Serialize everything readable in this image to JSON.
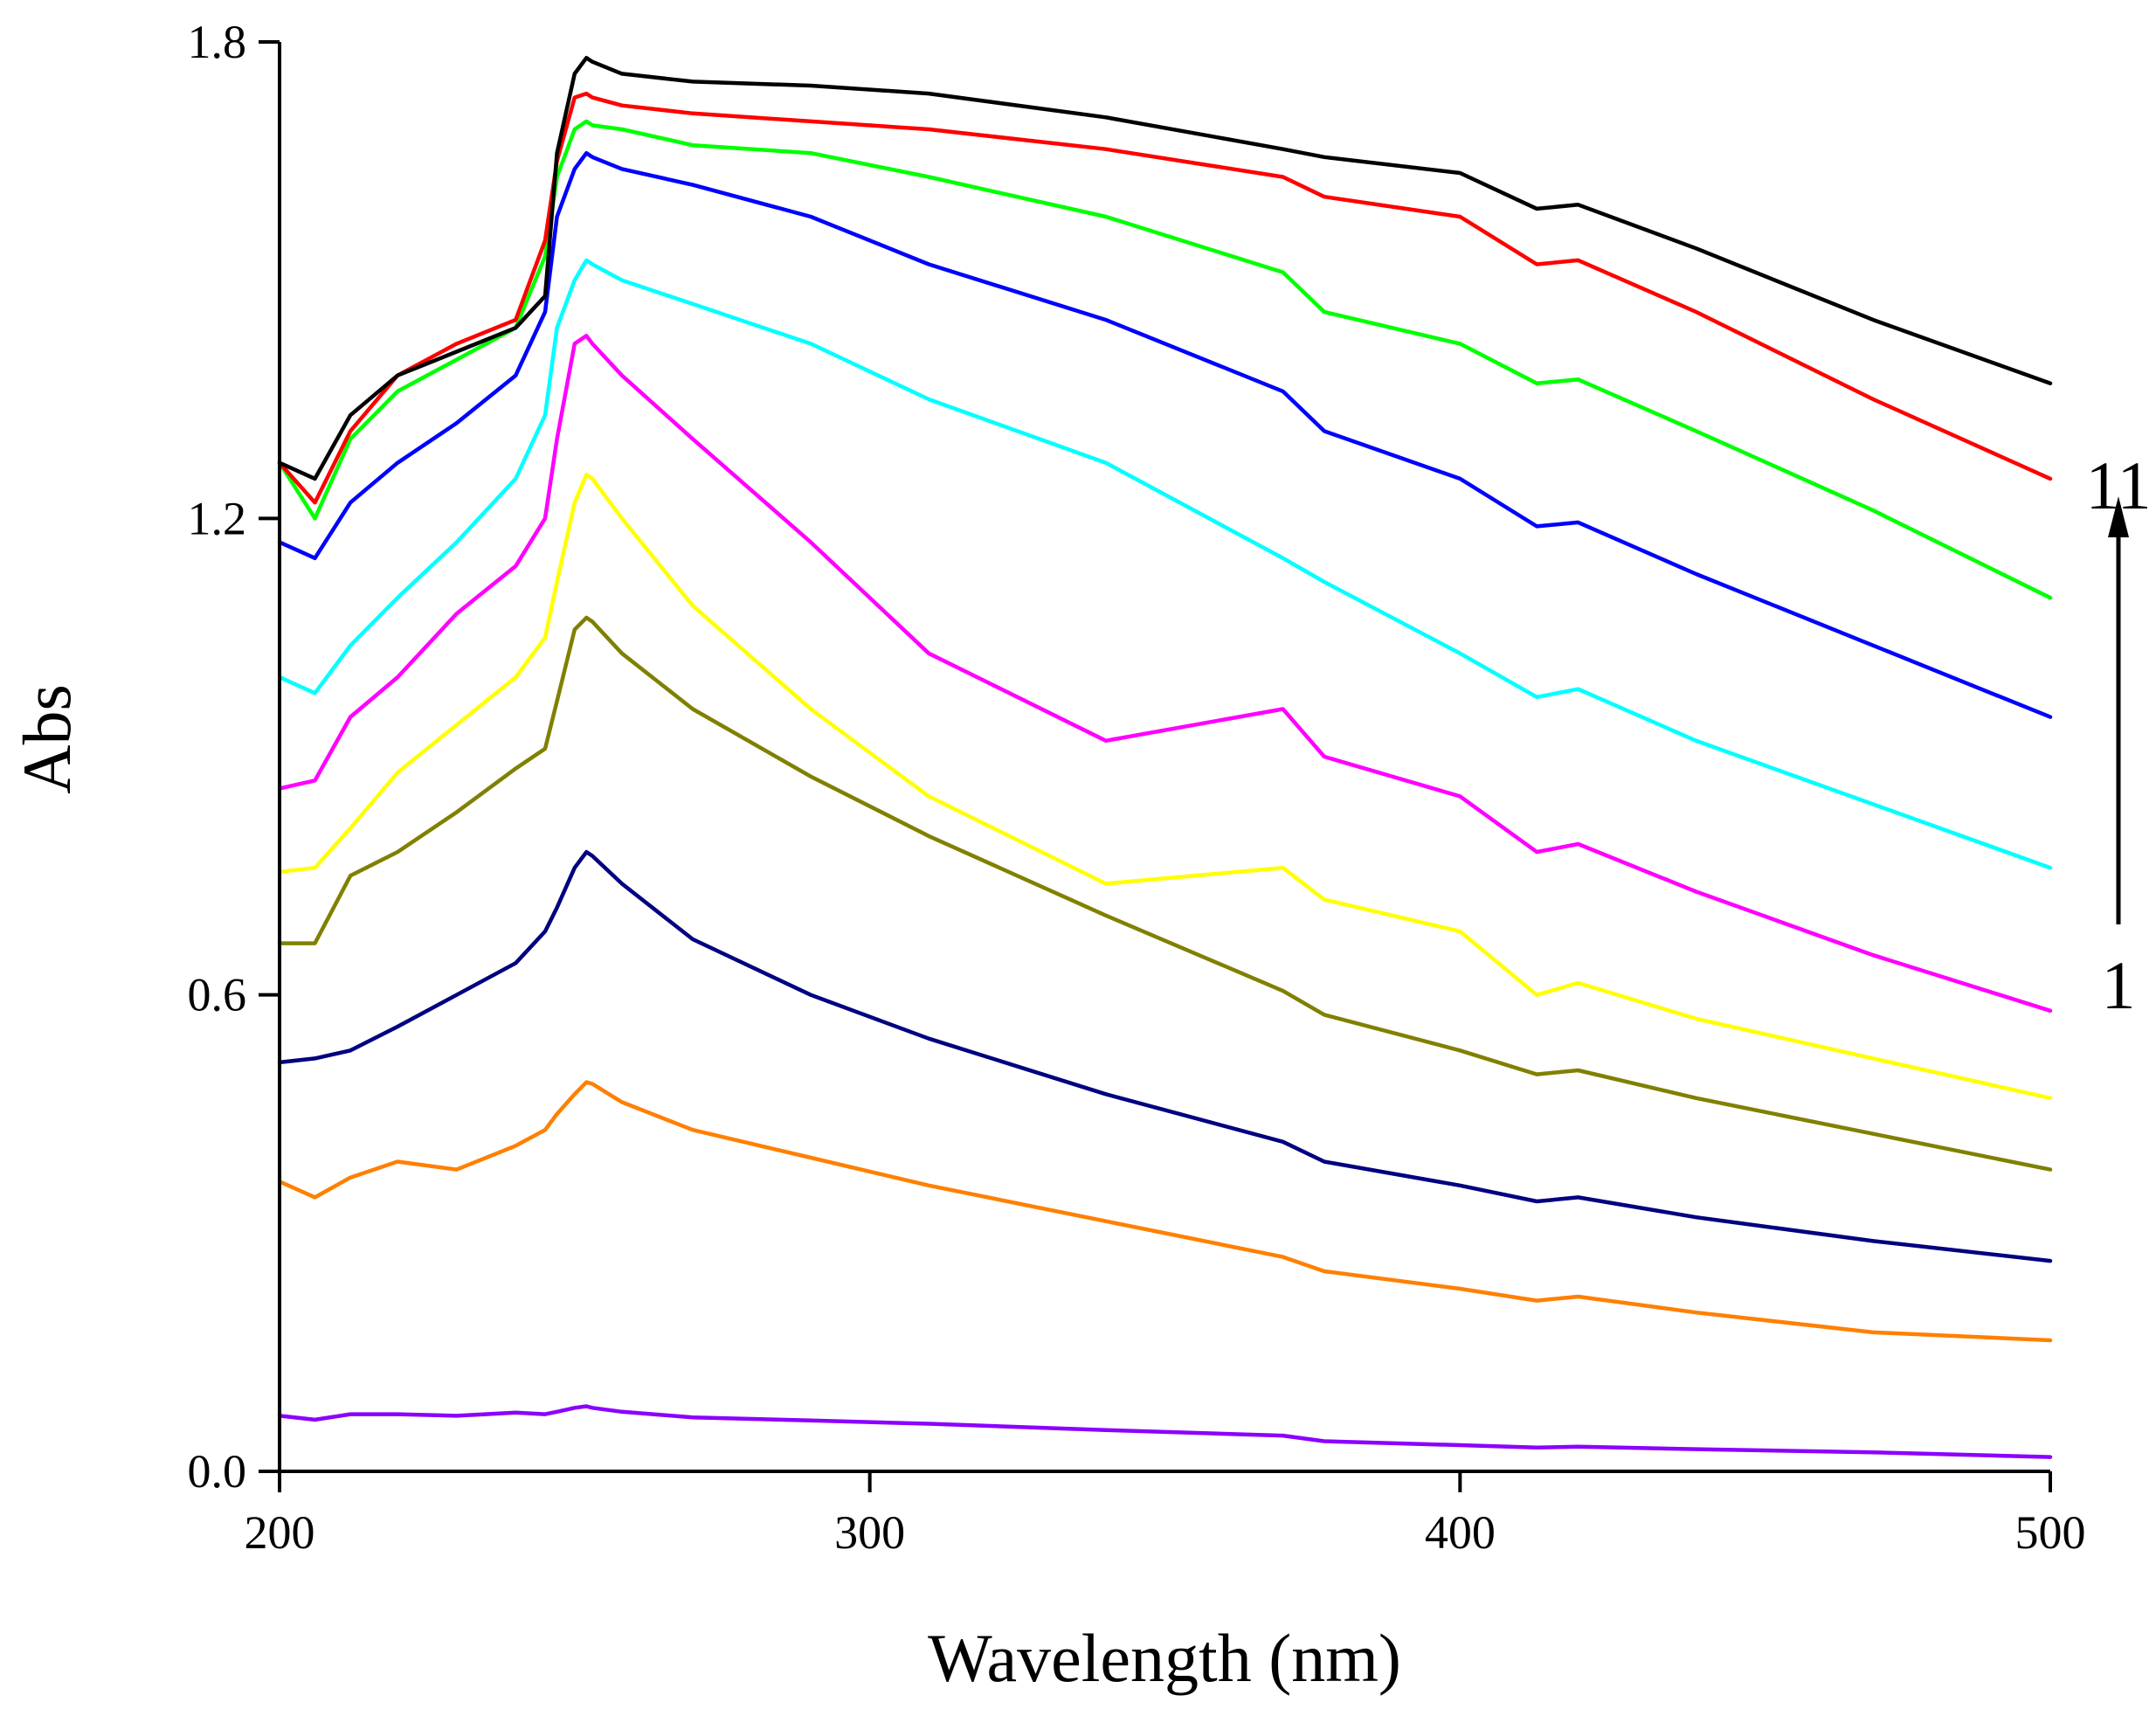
{
  "chart_data": {
    "type": "line",
    "title": "",
    "xlabel": "Wavelength (nm)",
    "ylabel": "Abs",
    "xlim": [
      200,
      500
    ],
    "ylim": [
      0.0,
      1.8
    ],
    "xticks": [
      "200",
      "300",
      "400",
      "500"
    ],
    "yticks": [
      "0.0",
      "0.6",
      "1.2",
      "1.8"
    ],
    "grid": false,
    "annotations": [
      {
        "text": "11",
        "role": "top-curve-label"
      },
      {
        "text": "1",
        "role": "bottom-curve-label"
      }
    ],
    "arrow": {
      "from": "1",
      "to": "11",
      "direction": "up"
    },
    "x": [
      200,
      206,
      212,
      220,
      230,
      240,
      245,
      247,
      250,
      252,
      253,
      258,
      270,
      290,
      310,
      340,
      370,
      377,
      400,
      413,
      420,
      440,
      470,
      500
    ],
    "series": [
      {
        "name": "1",
        "color": "#8b00ff",
        "values": [
          0.07,
          0.065,
          0.072,
          0.072,
          0.07,
          0.074,
          0.072,
          0.075,
          0.08,
          0.082,
          0.08,
          0.075,
          0.068,
          0.064,
          0.06,
          0.052,
          0.045,
          0.038,
          0.033,
          0.03,
          0.031,
          0.028,
          0.024,
          0.018
        ]
      },
      {
        "name": "2",
        "color": "#ff8000",
        "values": [
          0.365,
          0.345,
          0.37,
          0.39,
          0.38,
          0.41,
          0.43,
          0.45,
          0.475,
          0.49,
          0.488,
          0.465,
          0.43,
          0.395,
          0.36,
          0.315,
          0.27,
          0.252,
          0.23,
          0.215,
          0.22,
          0.2,
          0.175,
          0.165
        ]
      },
      {
        "name": "3",
        "color": "#000080",
        "values": [
          0.515,
          0.52,
          0.53,
          0.56,
          0.6,
          0.64,
          0.68,
          0.71,
          0.76,
          0.78,
          0.775,
          0.74,
          0.67,
          0.6,
          0.545,
          0.475,
          0.415,
          0.39,
          0.36,
          0.34,
          0.345,
          0.32,
          0.29,
          0.265
        ]
      },
      {
        "name": "4",
        "color": "#808000",
        "values": [
          0.665,
          0.665,
          0.75,
          0.78,
          0.83,
          0.885,
          0.91,
          0.97,
          1.06,
          1.075,
          1.07,
          1.03,
          0.96,
          0.875,
          0.8,
          0.7,
          0.605,
          0.575,
          0.53,
          0.5,
          0.505,
          0.47,
          0.425,
          0.38
        ]
      },
      {
        "name": "5",
        "color": "#ffff00",
        "values": [
          0.755,
          0.76,
          0.81,
          0.88,
          0.94,
          1.0,
          1.05,
          1.12,
          1.22,
          1.255,
          1.25,
          1.2,
          1.09,
          0.96,
          0.85,
          0.74,
          0.76,
          0.72,
          0.68,
          0.6,
          0.615,
          0.57,
          0.52,
          0.47
        ]
      },
      {
        "name": "6",
        "color": "#ff00ff",
        "values": [
          0.86,
          0.87,
          0.95,
          1.0,
          1.08,
          1.14,
          1.2,
          1.3,
          1.42,
          1.43,
          1.42,
          1.38,
          1.3,
          1.17,
          1.03,
          0.92,
          0.96,
          0.9,
          0.85,
          0.78,
          0.79,
          0.73,
          0.65,
          0.58
        ]
      },
      {
        "name": "7",
        "color": "#00ffff",
        "values": [
          1.0,
          0.98,
          1.04,
          1.1,
          1.17,
          1.25,
          1.33,
          1.44,
          1.5,
          1.525,
          1.52,
          1.5,
          1.47,
          1.42,
          1.35,
          1.27,
          1.15,
          1.12,
          1.03,
          0.975,
          0.985,
          0.92,
          0.84,
          0.76
        ]
      },
      {
        "name": "8",
        "color": "#0000ff",
        "values": [
          1.17,
          1.15,
          1.22,
          1.27,
          1.32,
          1.38,
          1.46,
          1.58,
          1.64,
          1.66,
          1.655,
          1.64,
          1.62,
          1.58,
          1.52,
          1.45,
          1.36,
          1.31,
          1.25,
          1.19,
          1.195,
          1.13,
          1.04,
          0.95
        ]
      },
      {
        "name": "9",
        "color": "#00ff00",
        "values": [
          1.27,
          1.2,
          1.3,
          1.36,
          1.4,
          1.44,
          1.53,
          1.63,
          1.69,
          1.7,
          1.695,
          1.69,
          1.67,
          1.66,
          1.63,
          1.58,
          1.51,
          1.46,
          1.42,
          1.37,
          1.375,
          1.31,
          1.21,
          1.1
        ]
      },
      {
        "name": "10",
        "color": "#ff0000",
        "values": [
          1.27,
          1.22,
          1.31,
          1.38,
          1.42,
          1.45,
          1.55,
          1.65,
          1.73,
          1.735,
          1.73,
          1.72,
          1.71,
          1.7,
          1.69,
          1.665,
          1.63,
          1.605,
          1.58,
          1.52,
          1.525,
          1.46,
          1.35,
          1.25
        ]
      },
      {
        "name": "11",
        "color": "#000000",
        "values": [
          1.27,
          1.25,
          1.33,
          1.38,
          1.41,
          1.44,
          1.48,
          1.66,
          1.76,
          1.78,
          1.775,
          1.76,
          1.75,
          1.745,
          1.735,
          1.705,
          1.665,
          1.655,
          1.635,
          1.59,
          1.595,
          1.54,
          1.45,
          1.37
        ]
      }
    ]
  }
}
